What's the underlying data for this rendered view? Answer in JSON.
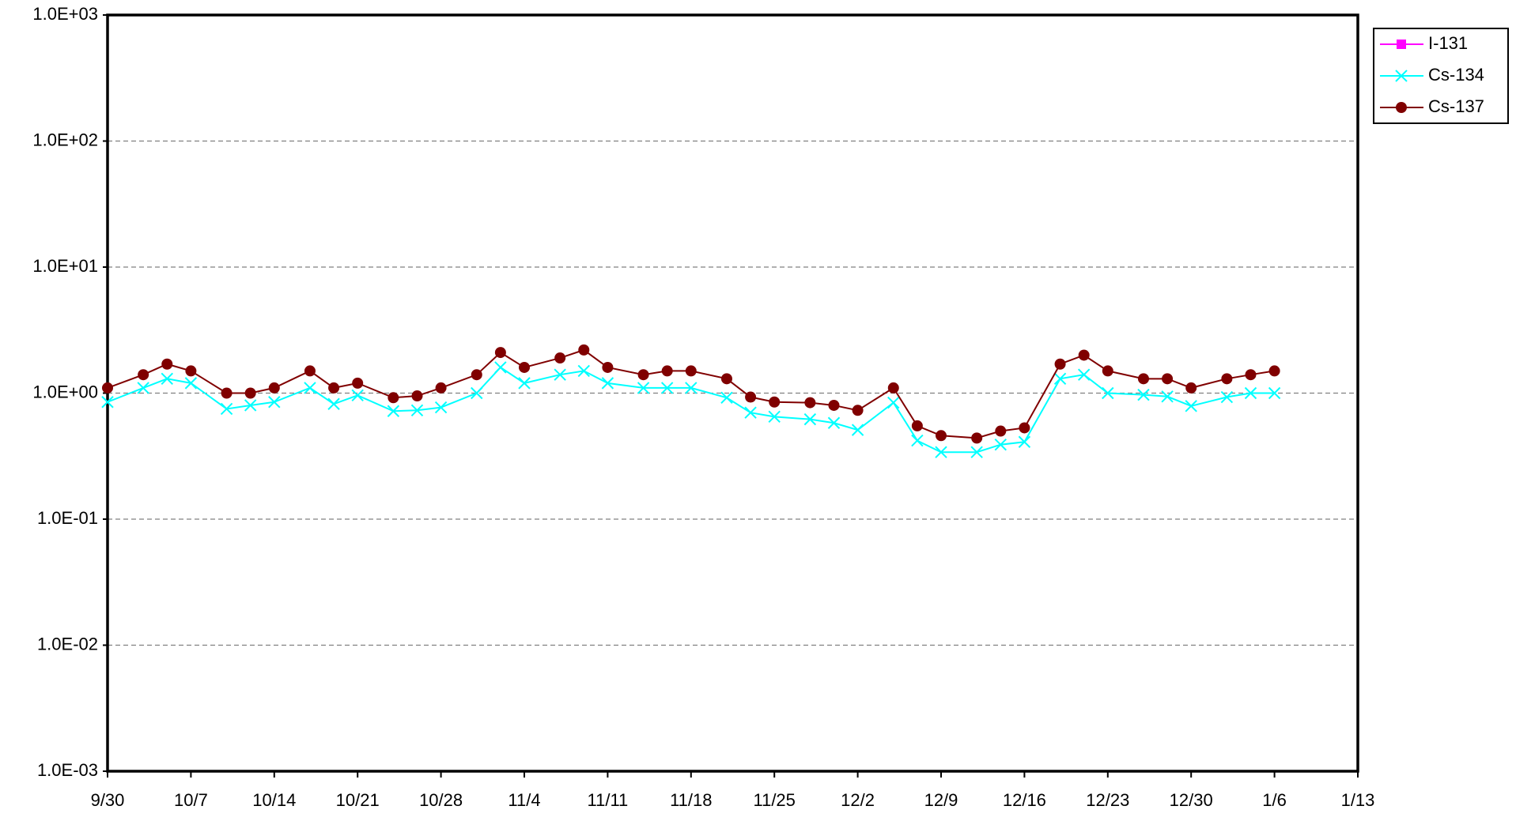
{
  "chart_data": {
    "type": "line",
    "log_scale": true,
    "grid": true,
    "legend": "top-right",
    "x": [
      "9/30",
      "10/3",
      "10/5",
      "10/7",
      "10/10",
      "10/12",
      "10/14",
      "10/17",
      "10/19",
      "10/21",
      "10/24",
      "10/26",
      "10/28",
      "10/31",
      "11/2",
      "11/4",
      "11/7",
      "11/9",
      "11/11",
      "11/14",
      "11/16",
      "11/18",
      "11/21",
      "11/23",
      "11/25",
      "11/28",
      "11/30",
      "12/2",
      "12/5",
      "12/7",
      "12/9",
      "12/12",
      "12/14",
      "12/16",
      "12/19",
      "12/21",
      "12/23",
      "12/26",
      "12/28",
      "12/30",
      "1/2",
      "1/4",
      "1/6"
    ],
    "xlim": [
      "9/30",
      "1/13"
    ],
    "xticks": [
      "9/30",
      "10/7",
      "10/14",
      "10/21",
      "10/28",
      "11/4",
      "11/11",
      "11/18",
      "11/25",
      "12/2",
      "12/9",
      "12/16",
      "12/23",
      "12/30",
      "1/6",
      "1/13"
    ],
    "ylim": [
      0.001,
      1000
    ],
    "yticks": [
      {
        "value": 0.001,
        "label": "1.0E-03"
      },
      {
        "value": 0.01,
        "label": "1.0E-02"
      },
      {
        "value": 0.1,
        "label": "1.0E-01"
      },
      {
        "value": 1,
        "label": "1.0E+00"
      },
      {
        "value": 10,
        "label": "1.0E+01"
      },
      {
        "value": 100,
        "label": "1.0E+02"
      },
      {
        "value": 1000,
        "label": "1.0E+03"
      }
    ],
    "series": [
      {
        "name": "I-131",
        "color": "#ff00ff",
        "marker": "square",
        "values": [
          null,
          null,
          null,
          null,
          null,
          null,
          null,
          null,
          null,
          null,
          null,
          null,
          null,
          null,
          null,
          null,
          null,
          null,
          null,
          null,
          null,
          null,
          null,
          null,
          null,
          null,
          null,
          null,
          null,
          null,
          null,
          null,
          null,
          null,
          null,
          null,
          null,
          null,
          null,
          null,
          null,
          null,
          null
        ]
      },
      {
        "name": "Cs-134",
        "color": "#00ffff",
        "marker": "x",
        "values": [
          0.85,
          1.1,
          1.3,
          1.2,
          0.75,
          0.8,
          0.85,
          1.1,
          0.82,
          0.96,
          0.72,
          0.73,
          0.77,
          1.0,
          1.6,
          1.2,
          1.4,
          1.5,
          1.2,
          1.1,
          1.1,
          1.1,
          0.92,
          0.7,
          0.65,
          0.62,
          0.58,
          0.51,
          0.84,
          0.42,
          0.34,
          0.34,
          0.39,
          0.41,
          1.3,
          1.4,
          1.0,
          0.97,
          0.94,
          0.79,
          0.93,
          1.0,
          1.0
        ]
      },
      {
        "name": "Cs-137",
        "color": "#800000",
        "marker": "circle",
        "values": [
          1.1,
          1.4,
          1.7,
          1.5,
          1.0,
          1.0,
          1.1,
          1.5,
          1.1,
          1.2,
          0.92,
          0.95,
          1.1,
          1.4,
          2.1,
          1.6,
          1.9,
          2.2,
          1.6,
          1.4,
          1.5,
          1.5,
          1.3,
          0.93,
          0.85,
          0.84,
          0.8,
          0.73,
          1.1,
          0.55,
          0.46,
          0.44,
          0.5,
          0.53,
          1.7,
          2.0,
          1.5,
          1.3,
          1.3,
          1.1,
          1.3,
          1.4,
          1.5
        ]
      }
    ]
  }
}
